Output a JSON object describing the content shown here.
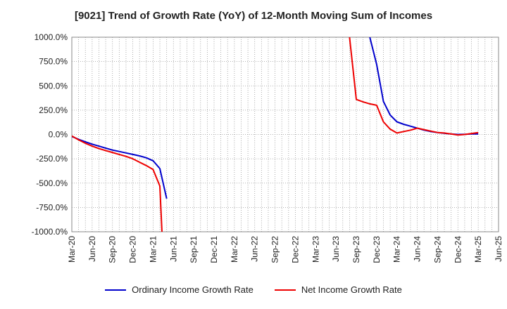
{
  "chart_data": {
    "type": "line",
    "title": "[9021]  Trend of Growth Rate (YoY) of 12-Month Moving Sum of Incomes",
    "xlabel": "",
    "ylabel": "",
    "ylim": [
      -1000,
      1000
    ],
    "y_ticks": [
      1000,
      750,
      500,
      250,
      0,
      -250,
      -500,
      -750,
      -1000
    ],
    "y_tick_labels": [
      "1000.0%",
      "750.0%",
      "500.0%",
      "250.0%",
      "0.0%",
      "-250.0%",
      "-500.0%",
      "-750.0%",
      "-1000.0%"
    ],
    "x_tick_labels": [
      "Mar-20",
      "Jun-20",
      "Sep-20",
      "Dec-20",
      "Mar-21",
      "Jun-21",
      "Sep-21",
      "Dec-21",
      "Mar-22",
      "Jun-22",
      "Sep-22",
      "Dec-22",
      "Mar-23",
      "Jun-23",
      "Sep-23",
      "Dec-23",
      "Mar-24",
      "Jun-24",
      "Sep-24",
      "Dec-24",
      "Mar-25",
      "Jun-25"
    ],
    "grid": true,
    "legend_position": "bottom-center",
    "series": [
      {
        "name": "Ordinary Income Growth Rate",
        "color": "#0000cc",
        "points": [
          [
            "Mar-20",
            -20
          ],
          [
            "Apr-20",
            -50
          ],
          [
            "May-20",
            -75
          ],
          [
            "Jun-20",
            -100
          ],
          [
            "Jul-20",
            -120
          ],
          [
            "Aug-20",
            -140
          ],
          [
            "Sep-20",
            -160
          ],
          [
            "Oct-20",
            -175
          ],
          [
            "Nov-20",
            -190
          ],
          [
            "Dec-20",
            -205
          ],
          [
            "Jan-21",
            -220
          ],
          [
            "Feb-21",
            -240
          ],
          [
            "Mar-21",
            -270
          ],
          [
            "Apr-21",
            -350
          ],
          [
            "May-21",
            -660
          ]
        ],
        "segment2": [
          [
            "Nov-23",
            1000
          ],
          [
            "Dec-23",
            720
          ],
          [
            "Jan-24",
            340
          ],
          [
            "Feb-24",
            200
          ],
          [
            "Mar-24",
            130
          ],
          [
            "Apr-24",
            105
          ],
          [
            "May-24",
            85
          ],
          [
            "Jun-24",
            65
          ],
          [
            "Jul-24",
            45
          ],
          [
            "Aug-24",
            30
          ],
          [
            "Sep-24",
            20
          ],
          [
            "Oct-24",
            12
          ],
          [
            "Nov-24",
            5
          ],
          [
            "Dec-24",
            0
          ],
          [
            "Jan-25",
            2
          ],
          [
            "Feb-25",
            5
          ],
          [
            "Mar-25",
            5
          ]
        ]
      },
      {
        "name": "Net Income Growth Rate",
        "color": "#ee0000",
        "points": [
          [
            "Mar-20",
            -15
          ],
          [
            "Apr-20",
            -55
          ],
          [
            "May-20",
            -90
          ],
          [
            "Jun-20",
            -120
          ],
          [
            "Jul-20",
            -145
          ],
          [
            "Aug-20",
            -165
          ],
          [
            "Sep-20",
            -185
          ],
          [
            "Oct-20",
            -205
          ],
          [
            "Nov-20",
            -225
          ],
          [
            "Dec-20",
            -250
          ],
          [
            "Jan-21",
            -285
          ],
          [
            "Feb-21",
            -320
          ],
          [
            "Mar-21",
            -360
          ],
          [
            "Apr-21",
            -530
          ],
          [
            "Apr-21b",
            -1000
          ]
        ],
        "segment2": [
          [
            "Aug-23",
            1000
          ],
          [
            "Sep-23",
            360
          ],
          [
            "Oct-23",
            335
          ],
          [
            "Nov-23",
            315
          ],
          [
            "Dec-23",
            300
          ],
          [
            "Jan-24",
            130
          ],
          [
            "Feb-24",
            55
          ],
          [
            "Mar-24",
            15
          ],
          [
            "Apr-24",
            30
          ],
          [
            "May-24",
            45
          ],
          [
            "Jun-24",
            65
          ],
          [
            "Jul-24",
            50
          ],
          [
            "Aug-24",
            35
          ],
          [
            "Sep-24",
            20
          ],
          [
            "Oct-24",
            15
          ],
          [
            "Nov-24",
            5
          ],
          [
            "Dec-24",
            -5
          ],
          [
            "Jan-25",
            0
          ],
          [
            "Feb-25",
            10
          ],
          [
            "Mar-25",
            20
          ]
        ]
      }
    ]
  }
}
